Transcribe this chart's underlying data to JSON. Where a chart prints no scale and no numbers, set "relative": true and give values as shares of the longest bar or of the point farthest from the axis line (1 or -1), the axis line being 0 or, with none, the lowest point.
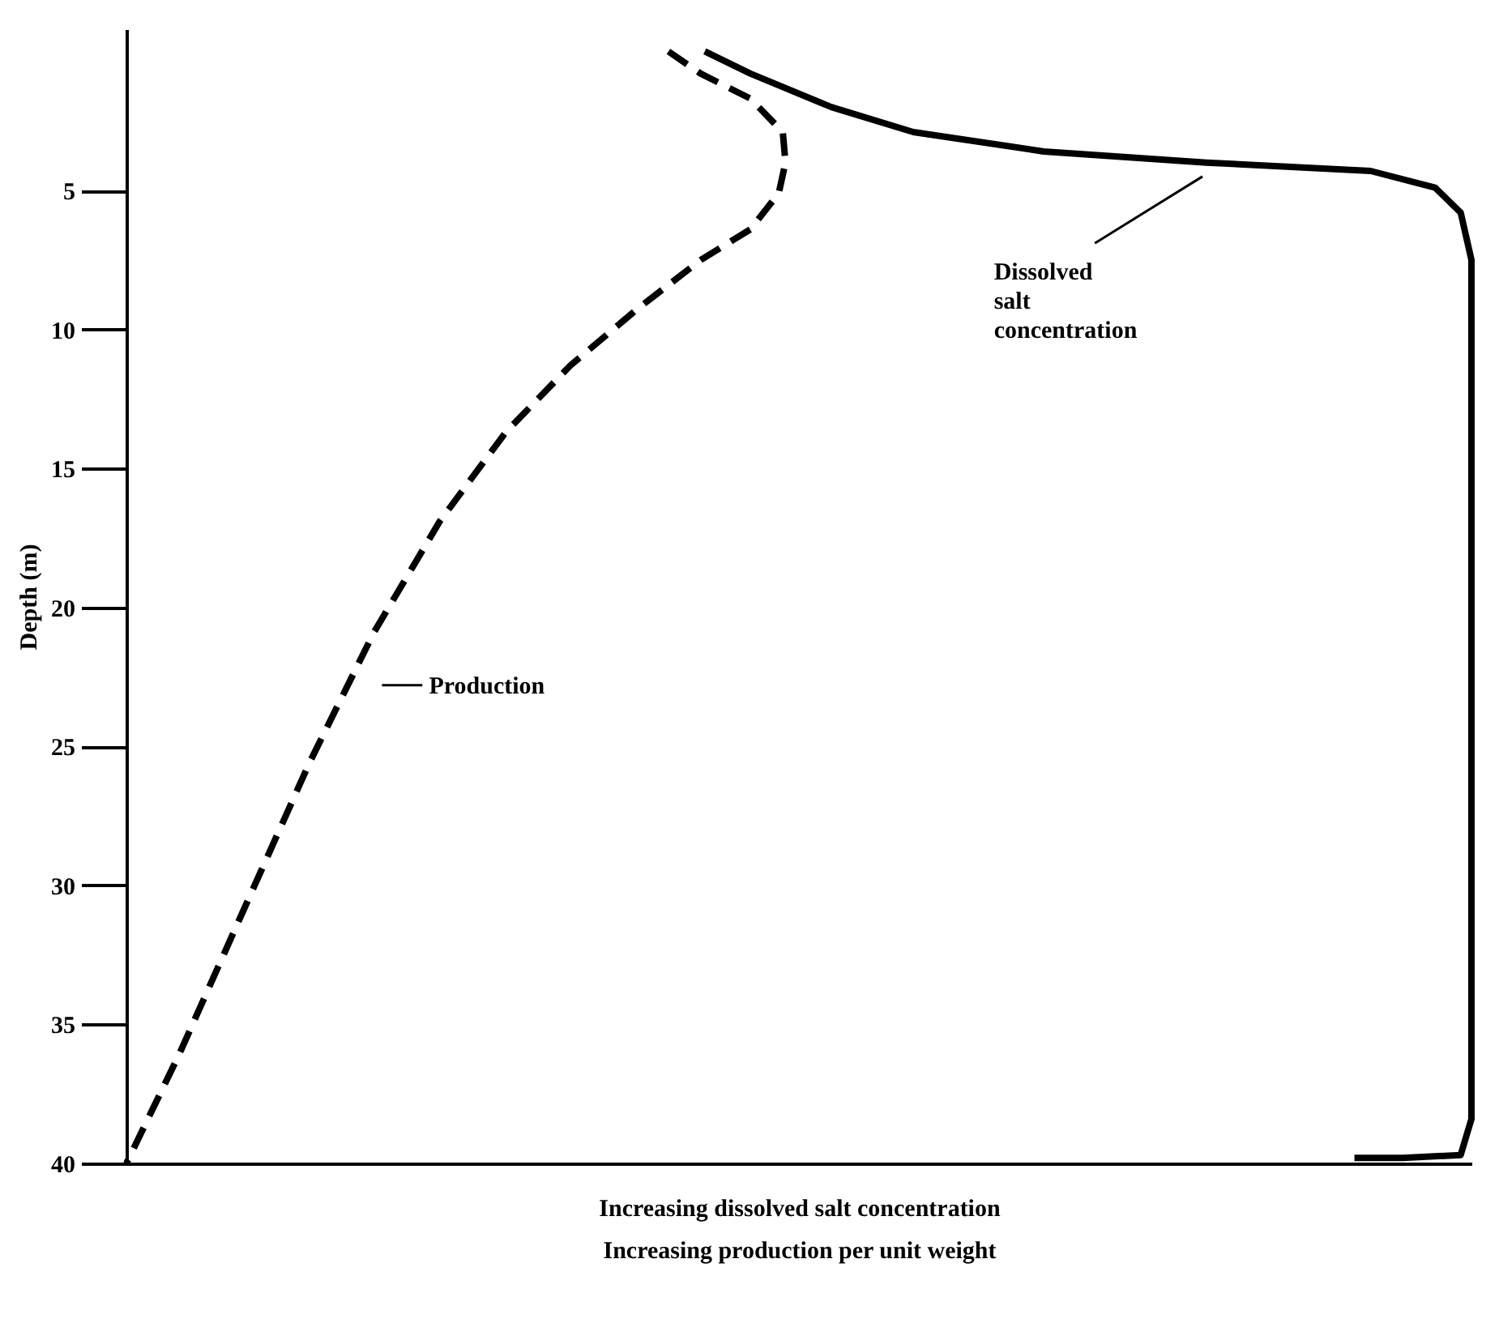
{
  "chart_data": {
    "type": "line",
    "relative": true,
    "orientation": "horizontal",
    "ylabel": "Depth (m)",
    "xlabel": "Increasing dissolved salt concentration\nIncreasing production per unit weight",
    "ylim": [
      40,
      -0.8
    ],
    "yticks": [
      5,
      10,
      15,
      20,
      25,
      30,
      35,
      40
    ],
    "grid": false,
    "marker": "none",
    "series": [
      {
        "color": "#000000",
        "line_style": "dashed",
        "values": [
          0.403,
          0.427,
          0.464,
          0.488,
          0.49,
          0.485,
          0.464,
          0.427,
          0.379,
          0.33,
          0.282,
          0.233,
          0.184,
          0.136,
          0.087,
          0.039,
          0
        ],
        "x": [
          0,
          0.8,
          1.7,
          2.9,
          4.0,
          5.1,
          6.4,
          7.5,
          9.3,
          11.3,
          13.7,
          16.9,
          20.9,
          25.6,
          30.9,
          36.1,
          40
        ]
      },
      {
        "color": "#000000",
        "line_style": "solid",
        "values": [
          0.43,
          0.464,
          0.524,
          0.585,
          0.682,
          0.803,
          0.925,
          0.973,
          0.992,
          1,
          1,
          0.992,
          0.949,
          0.913
        ],
        "x": [
          0,
          0.8,
          2.0,
          2.9,
          3.6,
          4.0,
          4.3,
          4.9,
          5.8,
          7.5,
          38.4,
          39.7,
          39.8,
          39.8
        ]
      }
    ],
    "annotations": [
      "Production",
      "Dissolved\nsalt\nconcentration"
    ]
  }
}
